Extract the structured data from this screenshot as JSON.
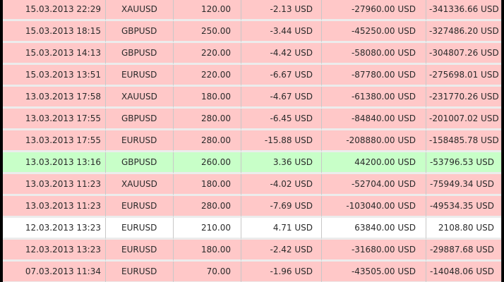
{
  "rows": [
    {
      "time": "15.03.2013 22:29",
      "symbol": "XAUUSD",
      "volume": "120.00",
      "pnl": "-2.13 USD",
      "money": "-27960.00 USD",
      "balance": "-341336.66 USD",
      "status": "loss"
    },
    {
      "time": "15.03.2013 18:15",
      "symbol": "GBPUSD",
      "volume": "250.00",
      "pnl": "-3.44 USD",
      "money": "-45250.00 USD",
      "balance": "-327486.20 USD",
      "status": "loss"
    },
    {
      "time": "15.03.2013 14:13",
      "symbol": "GBPUSD",
      "volume": "220.00",
      "pnl": "-4.42 USD",
      "money": "-58080.00 USD",
      "balance": "-304807.26 USD",
      "status": "loss"
    },
    {
      "time": "15.03.2013 13:51",
      "symbol": "EURUSD",
      "volume": "220.00",
      "pnl": "-6.67 USD",
      "money": "-87780.00 USD",
      "balance": "-275698.01 USD",
      "status": "loss"
    },
    {
      "time": "13.03.2013 17:58",
      "symbol": "XAUUSD",
      "volume": "180.00",
      "pnl": "-4.67 USD",
      "money": "-61380.00 USD",
      "balance": "-231770.26 USD",
      "status": "loss"
    },
    {
      "time": "13.03.2013 17:55",
      "symbol": "GBPUSD",
      "volume": "280.00",
      "pnl": "-6.45 USD",
      "money": "-84840.00 USD",
      "balance": "-201007.02 USD",
      "status": "loss"
    },
    {
      "time": "13.03.2013 17:55",
      "symbol": "EURUSD",
      "volume": "280.00",
      "pnl": "-15.88 USD",
      "money": "-208880.00 USD",
      "balance": "-158485.78 USD",
      "status": "loss"
    },
    {
      "time": "13.03.2013 13:16",
      "symbol": "GBPUSD",
      "volume": "260.00",
      "pnl": "3.36 USD",
      "money": "44200.00 USD",
      "balance": "-53796.53 USD",
      "status": "win"
    },
    {
      "time": "13.03.2013 11:23",
      "symbol": "XAUUSD",
      "volume": "180.00",
      "pnl": "-4.02 USD",
      "money": "-52704.00 USD",
      "balance": "-75949.34 USD",
      "status": "loss"
    },
    {
      "time": "13.03.2013 11:23",
      "symbol": "EURUSD",
      "volume": "280.00",
      "pnl": "-7.69 USD",
      "money": "-103040.00 USD",
      "balance": "-49534.35 USD",
      "status": "loss"
    },
    {
      "time": "12.03.2013 13:23",
      "symbol": "EURUSD",
      "volume": "210.00",
      "pnl": "4.71 USD",
      "money": "63840.00 USD",
      "balance": "2108.80 USD",
      "status": "plain"
    },
    {
      "time": "12.03.2013 13:23",
      "symbol": "EURUSD",
      "volume": "180.00",
      "pnl": "-2.42 USD",
      "money": "-31680.00 USD",
      "balance": "-29887.68 USD",
      "status": "loss"
    },
    {
      "time": "07.03.2013 11:34",
      "symbol": "EURUSD",
      "volume": "70.00",
      "pnl": "-1.96 USD",
      "money": "-43505.00 USD",
      "balance": "-14048.06 USD",
      "status": "loss"
    }
  ],
  "colors": {
    "loss_row": "#ffc8c8",
    "win_row": "#c8ffc8",
    "plain_row": "#ffffff",
    "frame": "#000000"
  }
}
